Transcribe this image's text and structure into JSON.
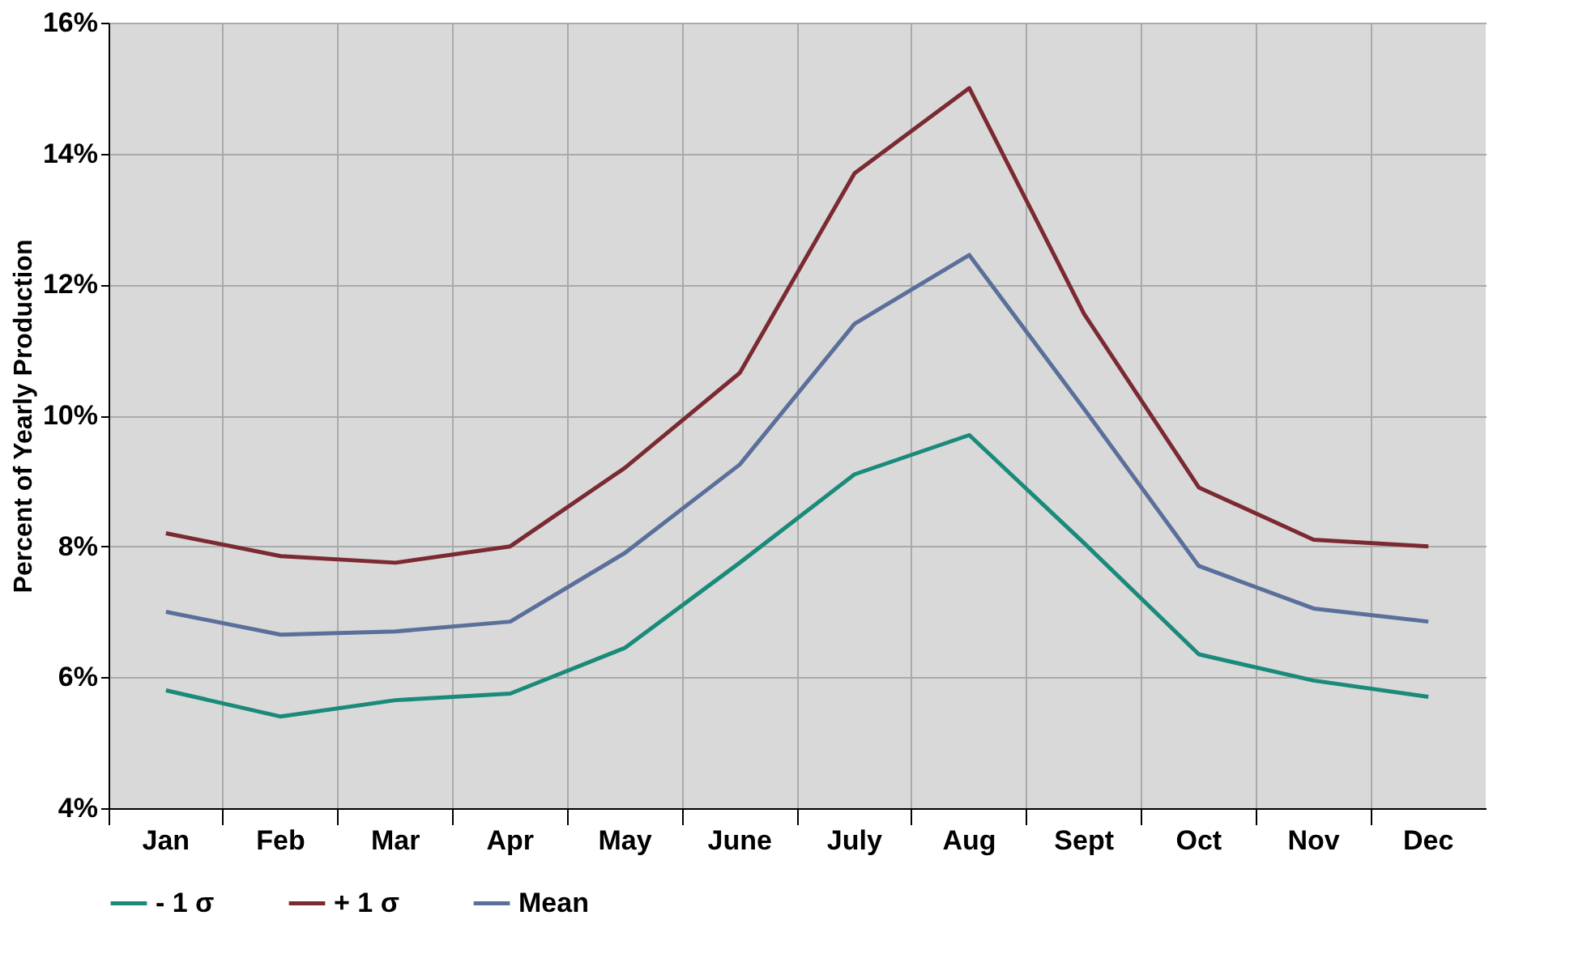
{
  "chart_data": {
    "type": "line",
    "ylabel": "Percent of Yearly Production",
    "categories": [
      "Jan",
      "Feb",
      "Mar",
      "Apr",
      "May",
      "June",
      "July",
      "Aug",
      "Sept",
      "Oct",
      "Nov",
      "Dec"
    ],
    "series": [
      {
        "name": "- 1 σ",
        "color": "#1a8a7a",
        "values": [
          5.8,
          5.4,
          5.65,
          5.75,
          6.45,
          7.75,
          9.1,
          9.7,
          8.05,
          6.35,
          5.95,
          5.7
        ]
      },
      {
        "name": "+ 1 σ",
        "color": "#7a2a30",
        "values": [
          8.2,
          7.85,
          7.75,
          8.0,
          9.2,
          10.65,
          13.7,
          15.0,
          11.55,
          8.9,
          8.1,
          8.0
        ]
      },
      {
        "name": "Mean",
        "color": "#5a6f9a",
        "values": [
          7.0,
          6.65,
          6.7,
          6.85,
          7.9,
          9.25,
          11.4,
          12.45,
          10.1,
          7.7,
          7.05,
          6.85
        ]
      }
    ],
    "ylim": [
      4,
      16
    ],
    "yticks": [
      {
        "value": 4,
        "label": "4%"
      },
      {
        "value": 6,
        "label": "6%"
      },
      {
        "value": 8,
        "label": "8%"
      },
      {
        "value": 10,
        "label": "10%"
      },
      {
        "value": 12,
        "label": "12%"
      },
      {
        "value": 14,
        "label": "14%"
      },
      {
        "value": 16,
        "label": "16%"
      }
    ],
    "grid": true,
    "legend": "bottom",
    "marker": "none",
    "line_style": "solid"
  }
}
